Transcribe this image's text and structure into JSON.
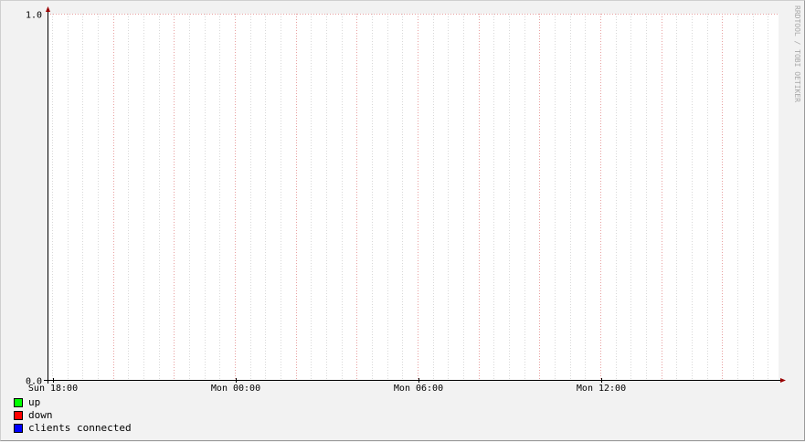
{
  "chart_data": {
    "type": "line",
    "title": "",
    "xlabel": "",
    "ylabel": "",
    "ylim": [
      0.0,
      1.0
    ],
    "y_ticks": [
      "0.0",
      "1.0"
    ],
    "x_tick_labels": [
      "Sun 18:00",
      "Mon 00:00",
      "Mon 06:00",
      "Mon 12:00"
    ],
    "grid": true,
    "legend_position": "bottom-left",
    "series": [
      {
        "name": "up",
        "color": "#00ff00",
        "values": []
      },
      {
        "name": "down",
        "color": "#ff0000",
        "values": []
      },
      {
        "name": "clients connected",
        "color": "#0000ff",
        "values": []
      }
    ]
  },
  "watermark": "RRDTOOL / TOBI OETIKER",
  "colors": {
    "background": "#f2f2f2",
    "canvas": "#ffffff",
    "major_grid": "#e8a0a0",
    "minor_grid": "#d8d8d8",
    "axis": "#000000",
    "arrow": "#990000"
  }
}
